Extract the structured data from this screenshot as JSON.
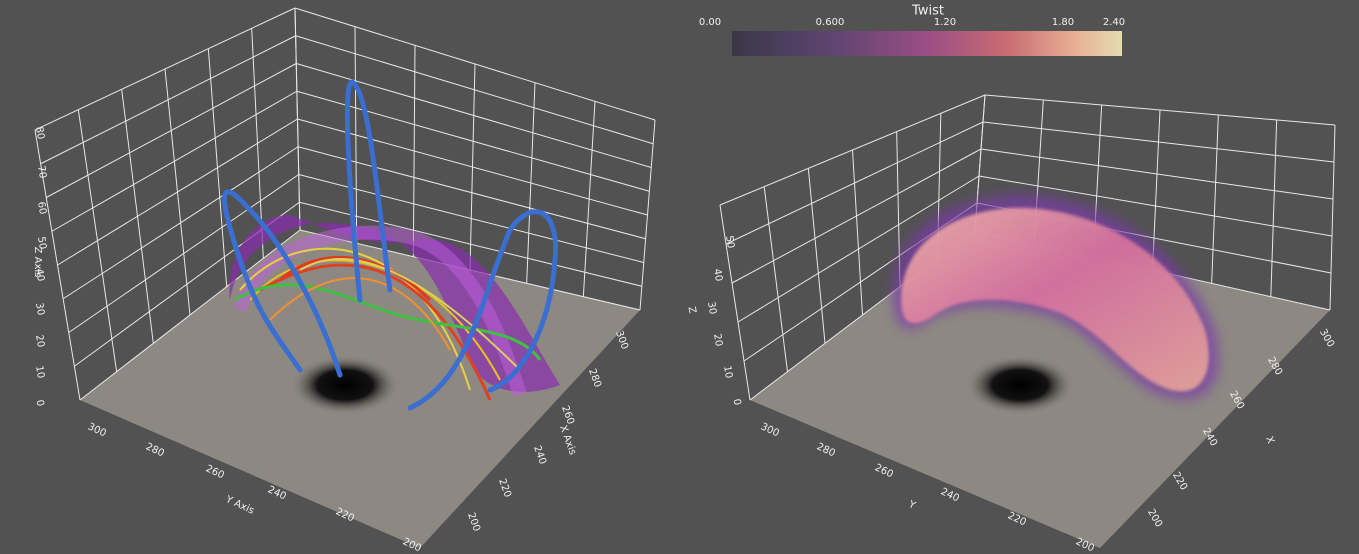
{
  "left_view": {
    "z_axis": {
      "title": "Z Axis",
      "ticks": [
        "0",
        "10",
        "20",
        "30",
        "40",
        "50",
        "60",
        "70",
        "80"
      ]
    },
    "y_axis": {
      "title": "Y Axis",
      "ticks": [
        "300",
        "280",
        "260",
        "240",
        "220",
        "200"
      ]
    },
    "x_axis": {
      "title": "X Axis",
      "ticks": [
        "200",
        "220",
        "240",
        "260",
        "280",
        "300"
      ]
    }
  },
  "right_view": {
    "colorbar": {
      "title": "Twist",
      "ticks": [
        "0.00",
        "0.600",
        "1.20",
        "1.80",
        "2.40"
      ]
    },
    "z_axis": {
      "title": "Z",
      "ticks": [
        "0",
        "10",
        "20",
        "30",
        "40",
        "50"
      ]
    },
    "y_axis": {
      "title": "Y",
      "ticks": [
        "300",
        "280",
        "260",
        "240",
        "220",
        "200"
      ]
    },
    "x_axis": {
      "title": "X",
      "ticks": [
        "200",
        "220",
        "240",
        "260",
        "280",
        "300"
      ]
    }
  }
}
